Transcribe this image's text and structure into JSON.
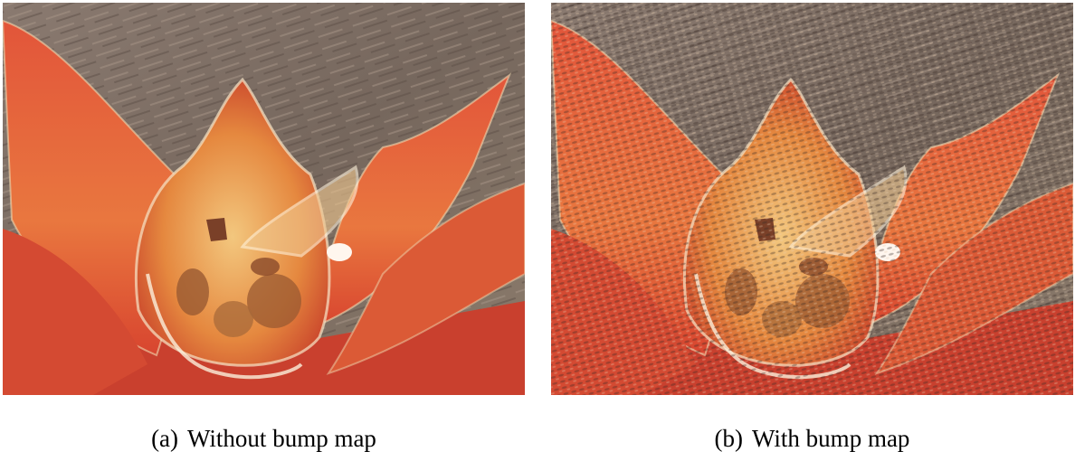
{
  "panels": [
    {
      "label": "(a)",
      "caption": "Without bump map"
    },
    {
      "label": "(b)",
      "caption": "With bump map"
    }
  ]
}
